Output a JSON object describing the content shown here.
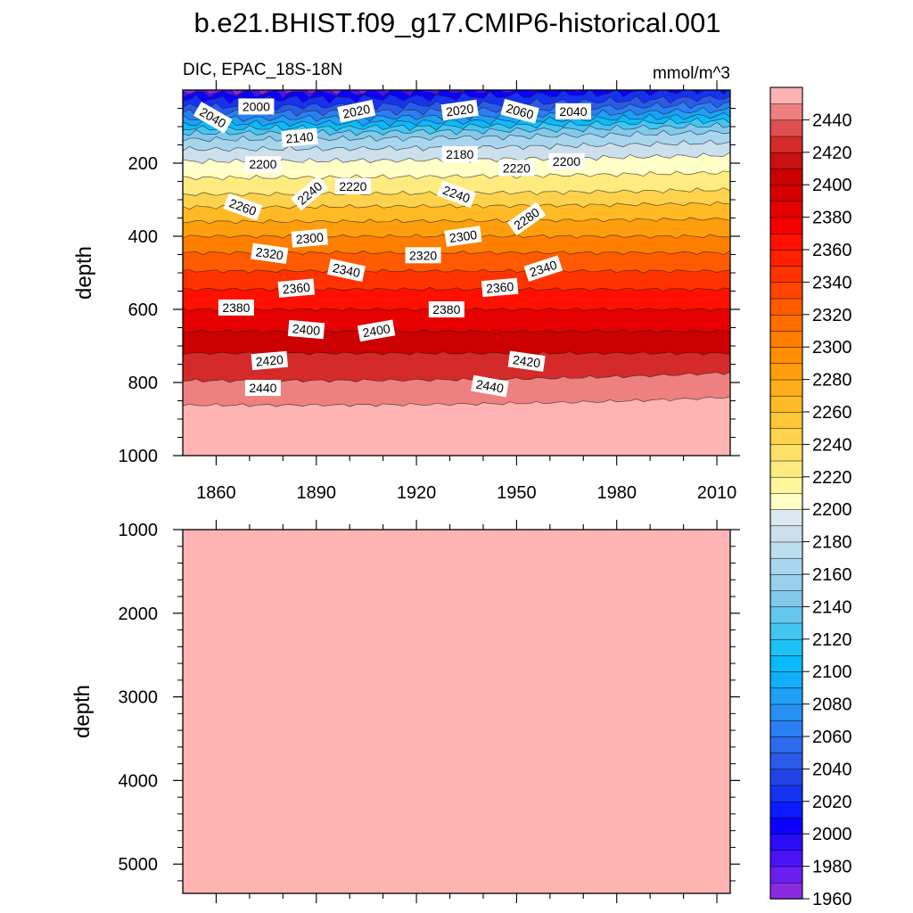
{
  "title": "b.e21.BHIST.f09_g17.CMIP6-historical.001",
  "subtitle_left": "DIC, EPAC_18S-18N",
  "subtitle_right": "mmol/m^3",
  "chart_data": [
    {
      "type": "heatmap",
      "panel": "upper",
      "variable": "DIC",
      "region": "EPAC_18S-18N",
      "units": "mmol/m^3",
      "xlabel": "",
      "ylabel": "depth",
      "xlim": [
        1850,
        2014
      ],
      "ylim": [
        0,
        1000
      ],
      "y_reversed": true,
      "xticks": [
        1860,
        1890,
        1920,
        1950,
        1980,
        2010
      ],
      "yticks": [
        200,
        400,
        600,
        800,
        1000
      ],
      "isoline_depths": [
        {
          "value": 1980,
          "depth": 4
        },
        {
          "value": 2000,
          "depth": 10
        },
        {
          "value": 2020,
          "depth": 25
        },
        {
          "value": 2040,
          "depth": 45
        },
        {
          "value": 2060,
          "depth": 62
        },
        {
          "value": 2080,
          "depth": 78
        },
        {
          "value": 2100,
          "depth": 92
        },
        {
          "value": 2120,
          "depth": 105
        },
        {
          "value": 2140,
          "depth": 118
        },
        {
          "value": 2160,
          "depth": 135
        },
        {
          "value": 2180,
          "depth": 162
        },
        {
          "value": 2200,
          "depth": 195
        },
        {
          "value": 2220,
          "depth": 240
        },
        {
          "value": 2240,
          "depth": 285
        },
        {
          "value": 2260,
          "depth": 320
        },
        {
          "value": 2280,
          "depth": 360
        },
        {
          "value": 2300,
          "depth": 400
        },
        {
          "value": 2320,
          "depth": 445
        },
        {
          "value": 2340,
          "depth": 495
        },
        {
          "value": 2360,
          "depth": 545
        },
        {
          "value": 2380,
          "depth": 600
        },
        {
          "value": 2400,
          "depth": 660
        },
        {
          "value": 2420,
          "depth": 720
        },
        {
          "value": 2440,
          "depth": 795
        },
        {
          "value": 2450,
          "depth": 862
        }
      ],
      "contour_labels": [
        {
          "text": "2040",
          "year": 1859,
          "depth": 75,
          "angle": 30
        },
        {
          "text": "2000",
          "year": 1872,
          "depth": 45,
          "angle": 0
        },
        {
          "text": "2020",
          "year": 1902,
          "depth": 58,
          "angle": -12
        },
        {
          "text": "2020",
          "year": 1933,
          "depth": 55,
          "angle": -8
        },
        {
          "text": "2060",
          "year": 1951,
          "depth": 58,
          "angle": 15
        },
        {
          "text": "2040",
          "year": 1967,
          "depth": 58,
          "angle": 0
        },
        {
          "text": "2140",
          "year": 1885,
          "depth": 130,
          "angle": -5
        },
        {
          "text": "2180",
          "year": 1933,
          "depth": 175,
          "angle": 0
        },
        {
          "text": "2200",
          "year": 1874,
          "depth": 203,
          "angle": 0
        },
        {
          "text": "2220",
          "year": 1950,
          "depth": 213,
          "angle": 0
        },
        {
          "text": "2200",
          "year": 1965,
          "depth": 195,
          "angle": 0
        },
        {
          "text": "2220",
          "year": 1901,
          "depth": 263,
          "angle": 0
        },
        {
          "text": "2240",
          "year": 1888,
          "depth": 282,
          "angle": -40
        },
        {
          "text": "2240",
          "year": 1932,
          "depth": 285,
          "angle": 20
        },
        {
          "text": "2260",
          "year": 1868,
          "depth": 320,
          "angle": 20
        },
        {
          "text": "2280",
          "year": 1953,
          "depth": 352,
          "angle": -35
        },
        {
          "text": "2300",
          "year": 1888,
          "depth": 405,
          "angle": -5
        },
        {
          "text": "2300",
          "year": 1934,
          "depth": 400,
          "angle": -8
        },
        {
          "text": "2320",
          "year": 1876,
          "depth": 447,
          "angle": 8
        },
        {
          "text": "2320",
          "year": 1922,
          "depth": 452,
          "angle": 0
        },
        {
          "text": "2340",
          "year": 1899,
          "depth": 493,
          "angle": 12
        },
        {
          "text": "2340",
          "year": 1958,
          "depth": 488,
          "angle": -18
        },
        {
          "text": "2360",
          "year": 1884,
          "depth": 542,
          "angle": -5
        },
        {
          "text": "2360",
          "year": 1945,
          "depth": 540,
          "angle": -5
        },
        {
          "text": "2380",
          "year": 1866,
          "depth": 595,
          "angle": 0
        },
        {
          "text": "2380",
          "year": 1929,
          "depth": 600,
          "angle": 0
        },
        {
          "text": "2400",
          "year": 1887,
          "depth": 655,
          "angle": 5
        },
        {
          "text": "2400",
          "year": 1908,
          "depth": 658,
          "angle": -10
        },
        {
          "text": "2420",
          "year": 1876,
          "depth": 740,
          "angle": -5
        },
        {
          "text": "2420",
          "year": 1953,
          "depth": 742,
          "angle": 8
        },
        {
          "text": "2440",
          "year": 1874,
          "depth": 815,
          "angle": 0
        },
        {
          "text": "2440",
          "year": 1942,
          "depth": 810,
          "angle": 10
        }
      ]
    },
    {
      "type": "heatmap",
      "panel": "lower",
      "variable": "DIC",
      "units": "mmol/m^3",
      "xlabel": "",
      "ylabel": "depth",
      "xlim": [
        1850,
        2014
      ],
      "ylim": [
        1000,
        5350
      ],
      "y_reversed": true,
      "yticks": [
        1000,
        2000,
        3000,
        4000,
        5000
      ],
      "uniform_value_min": 2450,
      "fill": "#ffb3b3"
    }
  ],
  "colorbar": {
    "levels": [
      1960,
      1970,
      1980,
      1990,
      2000,
      2010,
      2020,
      2030,
      2040,
      2050,
      2060,
      2070,
      2080,
      2090,
      2100,
      2110,
      2120,
      2130,
      2140,
      2150,
      2160,
      2170,
      2180,
      2190,
      2200,
      2210,
      2220,
      2230,
      2240,
      2250,
      2260,
      2270,
      2280,
      2290,
      2300,
      2310,
      2320,
      2330,
      2340,
      2350,
      2360,
      2370,
      2380,
      2390,
      2400,
      2410,
      2420,
      2430,
      2440,
      2450
    ],
    "labels": [
      "2440",
      "2420",
      "2400",
      "2380",
      "2360",
      "2340",
      "2320",
      "2300",
      "2280",
      "2260",
      "2240",
      "2220",
      "2200",
      "2180",
      "2160",
      "2140",
      "2120",
      "2100",
      "2080",
      "2060",
      "2040",
      "2020",
      "2000",
      "1980",
      "1960"
    ],
    "colors": [
      "#8a2be2",
      "#6a1ef0",
      "#4b12f5",
      "#2a0cf8",
      "#0b00ff",
      "#0a1cff",
      "#1532f0",
      "#2244e6",
      "#2a5ae8",
      "#2d6ced",
      "#2a7ff2",
      "#2690f4",
      "#1f9ff6",
      "#14aef8",
      "#0bbaf8",
      "#1dc2f5",
      "#45c5f2",
      "#65c7ef",
      "#82c9ec",
      "#98cfec",
      "#a8d6ef",
      "#bcdfee",
      "#ccdfed",
      "#dce9f0",
      "#ffffc8",
      "#fff59a",
      "#ffeb80",
      "#ffe066",
      "#ffd24e",
      "#ffc638",
      "#ffba26",
      "#ffad18",
      "#ff9e0c",
      "#ff8e02",
      "#ff7e00",
      "#ff6c00",
      "#ff5a00",
      "#ff4500",
      "#ff3300",
      "#ff2000",
      "#ff1000",
      "#f50000",
      "#e60000",
      "#d60000",
      "#cc0000",
      "#c81010",
      "#d42a2a",
      "#e05050",
      "#ee8080",
      "#ffb3b3"
    ]
  }
}
